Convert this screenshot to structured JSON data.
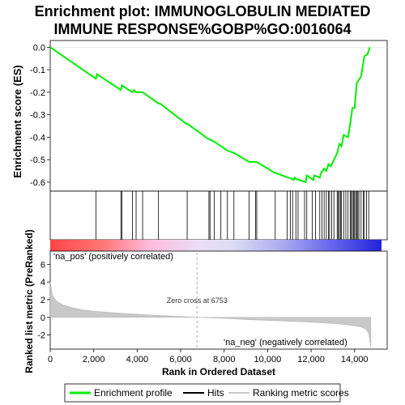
{
  "chart_data": {
    "type": "line",
    "title_line1": "Enrichment plot: IMMUNOGLOBULIN MEDIATED",
    "title_line2": "IMMUNE RESPONSE%GOBP%GO:0016064",
    "ylabel_top": "Enrichment score (ES)",
    "ylabel_bottom": "Ranked list metric (PreRanked)",
    "xlabel": "Rank in Ordered Dataset",
    "x_range": [
      0,
      15500
    ],
    "x_ticks": [
      0,
      2000,
      4000,
      6000,
      8000,
      10000,
      12000,
      14000
    ],
    "x_tick_labels": [
      "0",
      "2,000",
      "4,000",
      "6,000",
      "8,000",
      "10,000",
      "12,000",
      "14,000"
    ],
    "es_range": [
      -0.64,
      0.03
    ],
    "es_ticks": [
      0.0,
      -0.1,
      -0.2,
      -0.3,
      -0.4,
      -0.5,
      -0.6
    ],
    "es_tick_labels": [
      "0.0",
      "-0.1",
      "-0.2",
      "-0.3",
      "-0.4",
      "-0.5",
      "-0.6"
    ],
    "metric_range": [
      -3.6,
      7.5
    ],
    "metric_ticks": [
      6,
      4,
      2,
      0,
      -2
    ],
    "metric_tick_labels": [
      "6",
      "4",
      "2",
      "0",
      "-2"
    ],
    "es_curve": {
      "x": [
        0,
        2100,
        2150,
        3250,
        3300,
        3780,
        3850,
        3950,
        4250,
        4980,
        5050,
        6250,
        6300,
        7300,
        7350,
        7550,
        7850,
        8150,
        8450,
        9150,
        9200,
        9450,
        9500,
        10350,
        10400,
        10950,
        11000,
        11200,
        11250,
        11400,
        11450,
        11750,
        11800,
        12100,
        12150,
        12400,
        12450,
        12600,
        12700,
        12800,
        12900,
        13050,
        13200,
        13300,
        13400,
        13500,
        13700,
        13800,
        13900,
        14000,
        14100,
        14300,
        14450,
        14600,
        14700
      ],
      "y": [
        0.0,
        -0.14,
        -0.12,
        -0.19,
        -0.17,
        -0.2,
        -0.19,
        -0.2,
        -0.2,
        -0.25,
        -0.25,
        -0.34,
        -0.34,
        -0.41,
        -0.41,
        -0.42,
        -0.44,
        -0.46,
        -0.47,
        -0.51,
        -0.51,
        -0.51,
        -0.51,
        -0.56,
        -0.56,
        -0.58,
        -0.58,
        -0.59,
        -0.58,
        -0.59,
        -0.59,
        -0.6,
        -0.57,
        -0.59,
        -0.57,
        -0.58,
        -0.56,
        -0.54,
        -0.55,
        -0.52,
        -0.53,
        -0.5,
        -0.47,
        -0.43,
        -0.44,
        -0.39,
        -0.4,
        -0.34,
        -0.27,
        -0.27,
        -0.16,
        -0.13,
        -0.04,
        -0.03,
        0.0
      ]
    },
    "hits": [
      2100,
      3250,
      3300,
      3780,
      3950,
      4250,
      4980,
      6300,
      7300,
      7350,
      7550,
      7850,
      8150,
      8450,
      9150,
      9450,
      9500,
      10350,
      10900,
      11050,
      11150,
      11300,
      11400,
      11700,
      11800,
      12050,
      12200,
      12400,
      12500,
      12600,
      12700,
      12800,
      12850,
      12950,
      13050,
      13200,
      13250,
      13300,
      13350,
      13400,
      13500,
      13600,
      13700,
      13800,
      13850,
      13900,
      13950,
      14000,
      14050,
      14100,
      14150,
      14200,
      14300,
      14400,
      14450,
      14550,
      14650
    ],
    "metric_curve": {
      "x": [
        0,
        100,
        300,
        600,
        1000,
        1500,
        2000,
        3000,
        4000,
        5000,
        6000,
        6753,
        8000,
        9000,
        10000,
        11000,
        12000,
        13000,
        13500,
        14000,
        14300,
        14500,
        14650,
        14750
      ],
      "y": [
        4.0,
        2.5,
        1.8,
        1.4,
        1.1,
        0.85,
        0.7,
        0.5,
        0.35,
        0.22,
        0.1,
        0.0,
        -0.12,
        -0.25,
        -0.35,
        -0.45,
        -0.55,
        -0.7,
        -0.8,
        -0.95,
        -1.1,
        -1.3,
        -1.8,
        -3.4
      ]
    },
    "zero_cross_label": "Zero cross at 6753",
    "zero_cross_x": 6753,
    "pos_label": "'na_pos' (positively correlated)",
    "neg_label": "'na_neg' (negatively correlated)",
    "legend": [
      {
        "label": "Enrichment profile",
        "color": "#00ee00"
      },
      {
        "label": "Hits",
        "color": "#000000"
      },
      {
        "label": "Ranking metric scores",
        "color": "#c8c8c8"
      }
    ],
    "colors": {
      "es_line": "#00ee00",
      "hit_line": "#000000",
      "metric_fill": "#c8c8c8",
      "pos_text": "#dd2222",
      "neg_text": "#3333cc",
      "zero_line": "#aaaaaa"
    }
  }
}
